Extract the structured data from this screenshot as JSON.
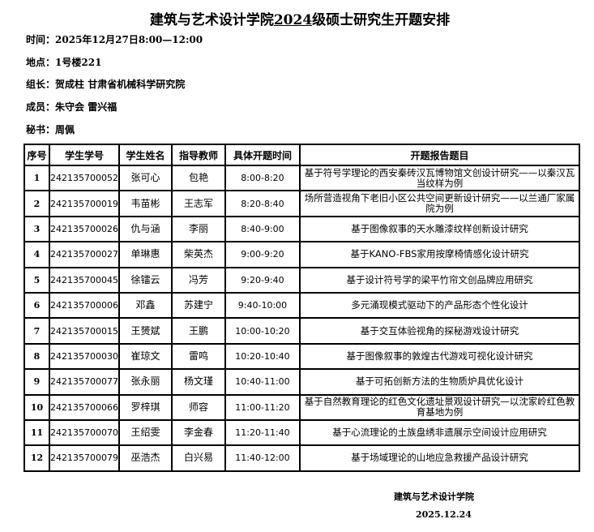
{
  "title": {
    "before": "建筑与艺术设计学院",
    "underlined": "2024",
    "after": "级硕士研究生开题安排"
  },
  "info": [
    {
      "label": "时间：",
      "value": "2025年12月27日8:00—12:00"
    },
    {
      "label": "地点：",
      "value": "1号楼221"
    },
    {
      "label": "组长：",
      "value": "贺成柱 甘肃省机械科学研究院"
    },
    {
      "label": "成员：",
      "value": "朱守会 雷兴福"
    },
    {
      "label": "秘书：",
      "value": "周佩"
    }
  ],
  "table": {
    "headers": [
      "序号",
      "学生学号",
      "学生姓名",
      "指导教师",
      "具体开题时间",
      "开题报告题目"
    ],
    "rows": [
      [
        "1",
        "242135700052",
        "张可心",
        "包艳",
        "8:00-8:20",
        "基于符号学理论的西安秦砖汉瓦博物馆文创设计研究——以秦汉瓦当纹样为例"
      ],
      [
        "2",
        "242135700019",
        "韦苗彬",
        "王志军",
        "8:20-8:40",
        "场所营造视角下老旧小区公共空间更新设计研究——以兰通厂家属院为例"
      ],
      [
        "3",
        "242135700026",
        "仇与涵",
        "李丽",
        "8:40-9:00",
        "基于图像叙事的天水雕漆纹样创新设计研究"
      ],
      [
        "4",
        "242135700027",
        "单琳惠",
        "柴英杰",
        "9:00-9:20",
        "基于KANO-FBS家用按摩椅情感化设计研究"
      ],
      [
        "5",
        "242135700045",
        "徐镭云",
        "冯芳",
        "9:20-9:40",
        "基于设计符号学的梁平竹帘文创品牌应用研究"
      ],
      [
        "6",
        "242135700006",
        "邓鑫",
        "苏建宁",
        "9:40-10:00",
        "多元涌现模式驱动下的产品形态个性化设计"
      ],
      [
        "7",
        "242135700015",
        "王赟斌",
        "王鹏",
        "10:00-10:20",
        "基于交互体验视角的探秘游戏设计研究"
      ],
      [
        "8",
        "242135700030",
        "崔琼文",
        "雷鸣",
        "10:20-10:40",
        "基于图像叙事的敦煌古代游戏可视化设计研究"
      ],
      [
        "9",
        "242135700077",
        "张永丽",
        "杨文瑾",
        "10:40-11:00",
        "基于可拓创新方法的生物质炉具优化设计"
      ],
      [
        "10",
        "242135700066",
        "罗梓琪",
        "师容",
        "11:00-11:20",
        "基于自然教育理论的红色文化遗址景观设计研究—以沈家岭红色教育基地为例"
      ],
      [
        "11",
        "242135700070",
        "王绍雯",
        "李金春",
        "11:20-11:40",
        "基于心流理论的土族盘绣非遗展示空间设计应用研究"
      ],
      [
        "12",
        "242135700079",
        "巫浩杰",
        "白兴易",
        "11:40-12:00",
        "基于场域理论的山地应急救援产品设计研究"
      ]
    ]
  },
  "footer": {
    "org": "建筑与艺术设计学院",
    "date": "2025.12.24"
  }
}
